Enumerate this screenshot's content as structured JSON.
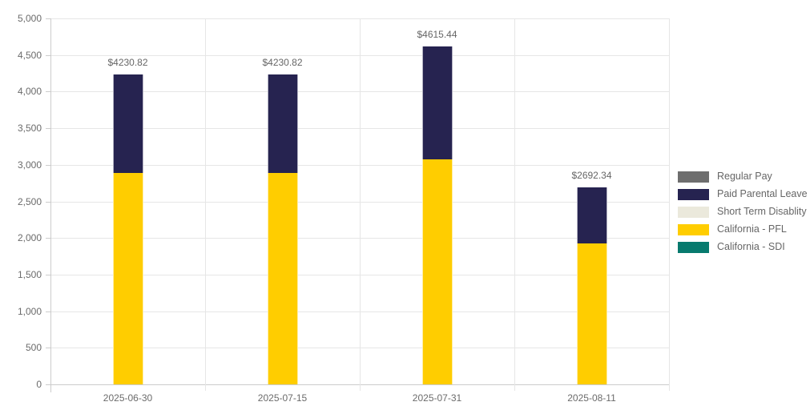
{
  "chart_data": {
    "type": "bar",
    "stacked": true,
    "orientation": "vertical",
    "title": "",
    "categories": [
      "2025-06-30",
      "2025-07-15",
      "2025-07-31",
      "2025-08-11"
    ],
    "series": [
      {
        "name": "Regular Pay",
        "color": "#6e6e6e",
        "values": [
          0,
          0,
          0,
          0
        ]
      },
      {
        "name": "Paid Parental Leave",
        "color": "#262350",
        "values": [
          1346.2,
          1346.2,
          1538.52,
          769.26
        ]
      },
      {
        "name": "Short Term Disablity",
        "color": "#ebe9dc",
        "values": [
          0,
          0,
          0,
          0
        ]
      },
      {
        "name": "California - PFL",
        "color": "#ffcd00",
        "values": [
          2884.62,
          2884.62,
          3076.92,
          1923.08
        ]
      },
      {
        "name": "California - SDI",
        "color": "#077a6e",
        "values": [
          0,
          0,
          0,
          0
        ]
      }
    ],
    "stack_order_bottom_to_top": [
      "California - SDI",
      "California - PFL",
      "Short Term Disablity",
      "Paid Parental Leave",
      "Regular Pay"
    ],
    "total_labels": [
      "$4230.82",
      "$4230.82",
      "$4615.44",
      "$2692.34"
    ],
    "totals": [
      4230.82,
      4230.82,
      4615.44,
      2692.34
    ],
    "xlabel": "",
    "ylabel": "",
    "ylim": [
      0,
      5000
    ],
    "ytick_interval": 500,
    "ytick_labels": [
      "0",
      "500",
      "1,000",
      "1,500",
      "2,000",
      "2,500",
      "3,000",
      "3,500",
      "4,000",
      "4,500",
      "5,000"
    ],
    "grid": true,
    "legend_position": "right-middle",
    "style_colors": {
      "grid_line": "#e6e6e6",
      "axis_line": "#cccccc",
      "tick_label": "#6b6b6b",
      "value_label": "#666666",
      "legend_text": "#666666",
      "background": "#ffffff"
    }
  }
}
